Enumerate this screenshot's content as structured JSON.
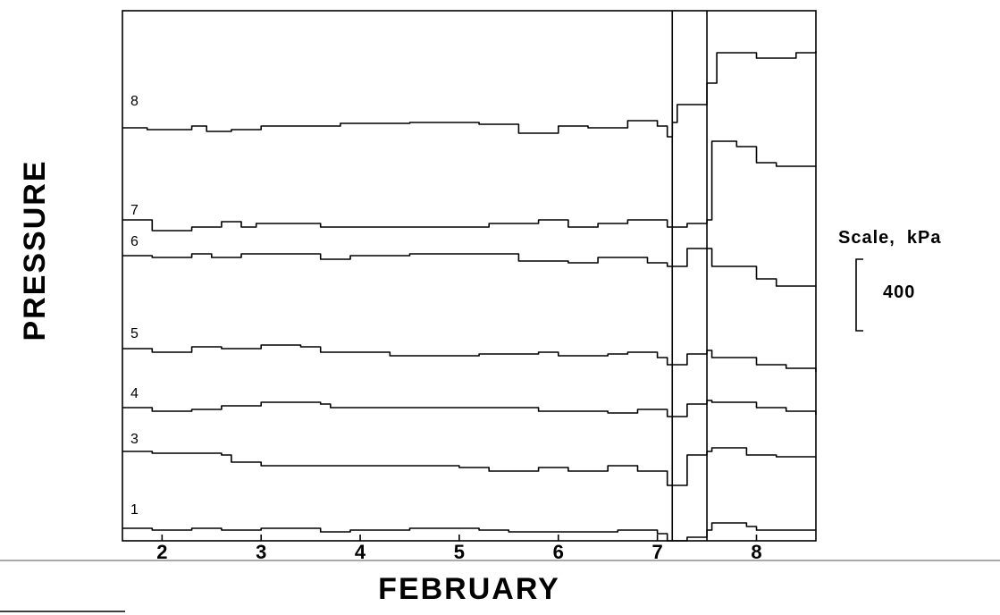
{
  "chart_data": {
    "type": "line",
    "xlabel": "FEBRUARY",
    "ylabel": "PRESSURE",
    "x_ticks": [
      "2",
      "3",
      "4",
      "5",
      "6",
      "7",
      "8"
    ],
    "xlim": [
      1.6,
      8.6
    ],
    "vertical_markers": [
      7.15,
      7.5
    ],
    "scale_bar": {
      "title": "Scale,  kPa",
      "value": "400",
      "kPa": 400
    },
    "series": [
      {
        "name": "8",
        "baseline": 0,
        "points": [
          [
            1.6,
            10
          ],
          [
            1.85,
            0
          ],
          [
            2.3,
            20
          ],
          [
            2.45,
            -10
          ],
          [
            2.7,
            0
          ],
          [
            3.0,
            20
          ],
          [
            3.8,
            35
          ],
          [
            4.5,
            40
          ],
          [
            5.2,
            30
          ],
          [
            5.6,
            -20
          ],
          [
            6.0,
            20
          ],
          [
            6.3,
            10
          ],
          [
            6.7,
            50
          ],
          [
            7.0,
            20
          ],
          [
            7.1,
            -40
          ],
          [
            7.15,
            40
          ],
          [
            7.2,
            140
          ],
          [
            7.5,
            260
          ],
          [
            7.6,
            430
          ],
          [
            8.0,
            400
          ],
          [
            8.4,
            430
          ],
          [
            8.6,
            440
          ]
        ]
      },
      {
        "name": "7",
        "baseline": 0,
        "points": [
          [
            1.6,
            60
          ],
          [
            1.9,
            0
          ],
          [
            2.3,
            20
          ],
          [
            2.6,
            50
          ],
          [
            2.8,
            20
          ],
          [
            2.95,
            40
          ],
          [
            3.6,
            20
          ],
          [
            4.2,
            20
          ],
          [
            5.3,
            40
          ],
          [
            5.8,
            60
          ],
          [
            6.1,
            20
          ],
          [
            6.4,
            40
          ],
          [
            6.7,
            60
          ],
          [
            7.1,
            20
          ],
          [
            7.15,
            20
          ],
          [
            7.3,
            40
          ],
          [
            7.5,
            60
          ],
          [
            7.55,
            500
          ],
          [
            7.8,
            470
          ],
          [
            8.0,
            380
          ],
          [
            8.2,
            360
          ],
          [
            8.6,
            360
          ]
        ]
      },
      {
        "name": "6",
        "baseline": 0,
        "points": [
          [
            1.6,
            20
          ],
          [
            1.9,
            10
          ],
          [
            2.3,
            30
          ],
          [
            2.5,
            10
          ],
          [
            2.8,
            30
          ],
          [
            3.6,
            0
          ],
          [
            3.9,
            20
          ],
          [
            4.5,
            30
          ],
          [
            5.2,
            30
          ],
          [
            5.6,
            -10
          ],
          [
            6.1,
            -20
          ],
          [
            6.4,
            10
          ],
          [
            6.9,
            -20
          ],
          [
            7.1,
            -40
          ],
          [
            7.15,
            -40
          ],
          [
            7.3,
            60
          ],
          [
            7.5,
            60
          ],
          [
            7.55,
            -40
          ],
          [
            8.0,
            -110
          ],
          [
            8.2,
            -150
          ],
          [
            8.6,
            -150
          ]
        ]
      },
      {
        "name": "5",
        "baseline": 0,
        "points": [
          [
            1.6,
            30
          ],
          [
            1.9,
            10
          ],
          [
            2.3,
            40
          ],
          [
            2.6,
            30
          ],
          [
            3.0,
            50
          ],
          [
            3.4,
            40
          ],
          [
            3.6,
            10
          ],
          [
            4.3,
            -10
          ],
          [
            5.2,
            0
          ],
          [
            5.8,
            10
          ],
          [
            6.0,
            -10
          ],
          [
            6.5,
            0
          ],
          [
            6.7,
            10
          ],
          [
            7.0,
            -20
          ],
          [
            7.1,
            -60
          ],
          [
            7.15,
            -60
          ],
          [
            7.3,
            0
          ],
          [
            7.5,
            20
          ],
          [
            7.55,
            -20
          ],
          [
            8.0,
            -60
          ],
          [
            8.3,
            -80
          ],
          [
            8.6,
            -100
          ]
        ]
      },
      {
        "name": "4",
        "baseline": 0,
        "points": [
          [
            1.6,
            20
          ],
          [
            1.9,
            0
          ],
          [
            2.3,
            10
          ],
          [
            2.6,
            30
          ],
          [
            3.0,
            50
          ],
          [
            3.6,
            40
          ],
          [
            3.7,
            20
          ],
          [
            4.5,
            20
          ],
          [
            5.3,
            20
          ],
          [
            5.8,
            0
          ],
          [
            6.5,
            -10
          ],
          [
            6.8,
            10
          ],
          [
            7.1,
            -30
          ],
          [
            7.15,
            -30
          ],
          [
            7.3,
            40
          ],
          [
            7.5,
            60
          ],
          [
            7.55,
            50
          ],
          [
            8.0,
            20
          ],
          [
            8.3,
            0
          ],
          [
            8.6,
            -20
          ]
        ]
      },
      {
        "name": "3",
        "baseline": 0,
        "points": [
          [
            1.6,
            40
          ],
          [
            1.9,
            30
          ],
          [
            2.3,
            30
          ],
          [
            2.6,
            20
          ],
          [
            2.7,
            -20
          ],
          [
            3.0,
            -40
          ],
          [
            4.0,
            -40
          ],
          [
            5.0,
            -50
          ],
          [
            5.3,
            -70
          ],
          [
            5.8,
            -50
          ],
          [
            6.1,
            -70
          ],
          [
            6.5,
            -40
          ],
          [
            6.8,
            -70
          ],
          [
            7.1,
            -150
          ],
          [
            7.15,
            -150
          ],
          [
            7.3,
            20
          ],
          [
            7.5,
            40
          ],
          [
            7.55,
            60
          ],
          [
            7.9,
            20
          ],
          [
            8.2,
            10
          ],
          [
            8.6,
            10
          ]
        ]
      },
      {
        "name": "1",
        "baseline": 0,
        "points": [
          [
            1.6,
            10
          ],
          [
            1.9,
            0
          ],
          [
            2.3,
            10
          ],
          [
            2.6,
            0
          ],
          [
            3.0,
            10
          ],
          [
            3.6,
            -10
          ],
          [
            3.9,
            0
          ],
          [
            4.5,
            10
          ],
          [
            5.2,
            0
          ],
          [
            5.5,
            -10
          ],
          [
            6.0,
            -10
          ],
          [
            6.6,
            0
          ],
          [
            7.0,
            -20
          ],
          [
            7.1,
            -60
          ],
          [
            7.15,
            -60
          ],
          [
            7.3,
            -40
          ],
          [
            7.5,
            0
          ],
          [
            7.55,
            40
          ],
          [
            7.9,
            20
          ],
          [
            8.0,
            0
          ],
          [
            8.6,
            0
          ]
        ]
      }
    ]
  }
}
